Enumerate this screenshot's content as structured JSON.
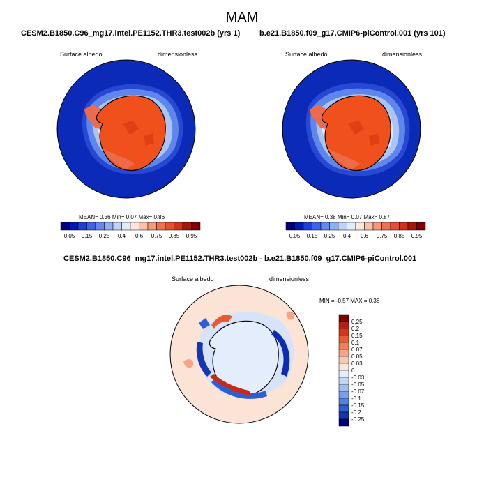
{
  "title": "MAM",
  "panels": [
    {
      "case": "CESM2.B1850.C96_mg17.intel.PE1152.THR3.test002b (yrs 1)",
      "variable": "Surface albedo",
      "units": "dimensionless",
      "stats": {
        "mean_label": "MEAN=",
        "mean": "0.36",
        "min_label": "Min=",
        "min": "0.07",
        "max_label": "Max=",
        "max": "0.86"
      }
    },
    {
      "case": "b.e21.B1850.f09_g17.CMIP6-piControl.001 (yrs 101)",
      "variable": "Surface albedo",
      "units": "dimensionless",
      "stats": {
        "mean_label": "MEAN=",
        "mean": "0.38",
        "min_label": "Min=",
        "min": "0.07",
        "max_label": "Max=",
        "max": "0.87"
      }
    }
  ],
  "abs_colorbar": {
    "colors": [
      "#00007e",
      "#001bb3",
      "#1f3fd9",
      "#3e63e6",
      "#6487f0",
      "#8fb0f5",
      "#bcd4f9",
      "#e1ebfc",
      "#fde6dc",
      "#f9c2a8",
      "#f59a78",
      "#ef7250",
      "#e6502c",
      "#cf3418",
      "#a8150a",
      "#7e0000"
    ],
    "tick_labels": [
      "0.05",
      "0.15",
      "0.25",
      "0.4",
      "0.6",
      "0.75",
      "0.85",
      "0.95"
    ]
  },
  "diff_panel": {
    "title": "CESM2.B1850.C96_mg17.intel.PE1152.THR3.test002b - b.e21.B1850.f09_g17.CMIP6-piControl.001",
    "variable": "Surface albedo",
    "units": "dimensionless",
    "stats": "MIN =  -0.57 MAX =   0.38"
  },
  "diff_colorbar": {
    "colors": [
      "#7e0000",
      "#b51d10",
      "#d8341c",
      "#e95a33",
      "#f07f58",
      "#f5a585",
      "#f9c8b0",
      "#fde6d8",
      "#e3ecfa",
      "#c4d6f5",
      "#a1bcef",
      "#7b9ee8",
      "#5381e0",
      "#2f5ed4",
      "#1436b5",
      "#00007e"
    ],
    "tick_labels": [
      "0.25",
      "0.2",
      "0.15",
      "0.1",
      "0.07",
      "0.05",
      "0.03",
      "0",
      "-0.03",
      "-0.05",
      "-0.07",
      "-0.1",
      "-0.15",
      "-0.2",
      "-0.25"
    ]
  },
  "map_colors": {
    "ocean_low": "#0b2ab8",
    "sea_ice_edge": "#5f86ec",
    "sea_ice_mid": "#a9c4f5",
    "sea_ice_pale": "#dbe7fb",
    "ice_sheet": "#f0511c",
    "ice_shelf": "#e84418",
    "peninsula": "#ee6b4a",
    "diff_background": "#fbe3d6",
    "diff_negative": "#0d2cb0",
    "diff_positive": "#c72a16"
  }
}
